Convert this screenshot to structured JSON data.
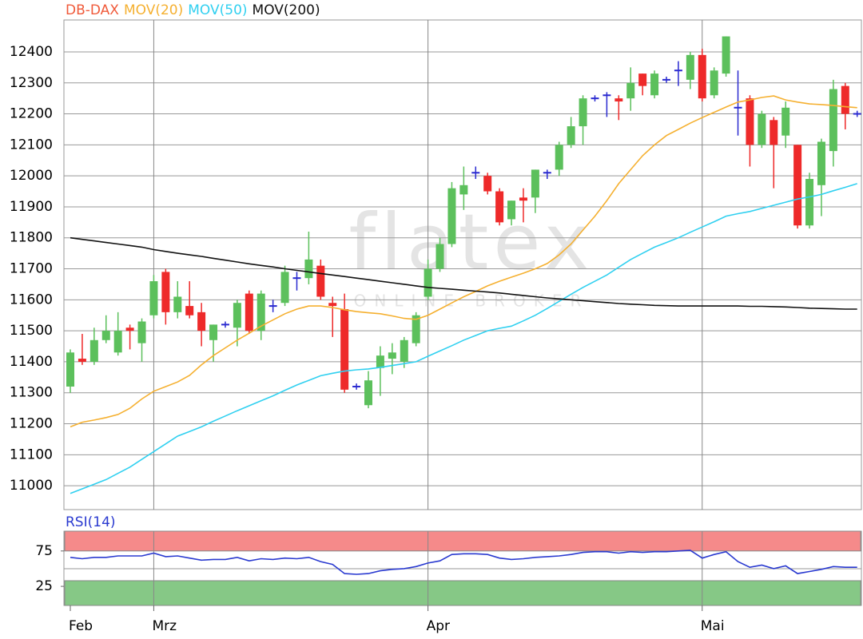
{
  "chart_data": [
    {
      "type": "candlestick",
      "watermark": "flatex",
      "watermark_sub": "ONLINE BROKER",
      "categories": [
        "Feb",
        null,
        null,
        null,
        null,
        null,
        null,
        "Mrz",
        null,
        null,
        null,
        null,
        null,
        null,
        null,
        null,
        null,
        null,
        null,
        null,
        null,
        null,
        null,
        null,
        null,
        null,
        null,
        null,
        null,
        null,
        "Apr",
        null,
        null,
        null,
        null,
        null,
        null,
        null,
        null,
        null,
        null,
        null,
        null,
        null,
        null,
        null,
        null,
        null,
        null,
        null,
        null,
        null,
        null,
        "Mai",
        null,
        null,
        null,
        null,
        null,
        null,
        null,
        null,
        null,
        null,
        null,
        null,
        null
      ],
      "ylim": [
        10923,
        12503
      ],
      "yticks": [
        11000,
        11100,
        11200,
        11300,
        11400,
        11500,
        11600,
        11700,
        11800,
        11900,
        12000,
        12100,
        12200,
        12300,
        12400
      ],
      "grid": true,
      "series": [
        {
          "name": "DB-DAX",
          "type": "candlestick",
          "color": "#f05a3a",
          "up_color": "#5cc05c",
          "down_color": "#ee2a2a",
          "flat_color": "#2a2ad0",
          "open": [
            11320,
            11410,
            11400,
            11470,
            11430,
            11510,
            11460,
            11550,
            11690,
            11560,
            11580,
            11560,
            11470,
            11520,
            11510,
            11620,
            11500,
            11580,
            11590,
            11670,
            11670,
            11710,
            11590,
            11570,
            11320,
            11260,
            11380,
            11410,
            11400,
            11460,
            11610,
            11700,
            11780,
            11940,
            12010,
            12000,
            11950,
            11860,
            11930,
            11930,
            12010,
            12020,
            12100,
            12160,
            12250,
            12260,
            12250,
            12250,
            12330,
            12260,
            12310,
            12340,
            12310,
            12390,
            12260,
            12330,
            12220,
            12250,
            12100,
            12180,
            12130,
            12100,
            11840,
            11970,
            12080,
            12290,
            12200
          ],
          "high": [
            11440,
            11490,
            11510,
            11550,
            11560,
            11520,
            11540,
            11680,
            11700,
            11660,
            11660,
            11590,
            11520,
            11530,
            11600,
            11630,
            11630,
            11600,
            11710,
            11690,
            11820,
            11730,
            11610,
            11620,
            11330,
            11370,
            11450,
            11460,
            11480,
            11560,
            11730,
            11800,
            11980,
            12030,
            12030,
            12010,
            11960,
            11920,
            11960,
            12020,
            12020,
            12110,
            12190,
            12260,
            12260,
            12270,
            12260,
            12350,
            12330,
            12340,
            12320,
            12370,
            12400,
            12410,
            12350,
            12450,
            12340,
            12260,
            12210,
            12190,
            12240,
            12100,
            12010,
            12120,
            12310,
            12300,
            12210
          ],
          "low": [
            11300,
            11390,
            11390,
            11460,
            11420,
            11440,
            11400,
            11540,
            11520,
            11540,
            11540,
            11450,
            11400,
            11510,
            11450,
            11490,
            11470,
            11560,
            11580,
            11630,
            11650,
            11600,
            11480,
            11300,
            11310,
            11250,
            11290,
            11360,
            11380,
            11450,
            11600,
            11690,
            11770,
            11890,
            11990,
            11940,
            11840,
            11840,
            11850,
            11880,
            11990,
            12000,
            12090,
            12100,
            12240,
            12190,
            12180,
            12210,
            12260,
            12250,
            12300,
            12290,
            12280,
            12240,
            12250,
            12320,
            12130,
            12030,
            12090,
            11960,
            12090,
            11830,
            11830,
            11870,
            12030,
            12150,
            12190
          ],
          "close": [
            11430,
            11400,
            11470,
            11500,
            11500,
            11500,
            11530,
            11660,
            11560,
            11610,
            11550,
            11500,
            11520,
            11520,
            11590,
            11500,
            11620,
            11580,
            11690,
            11670,
            11730,
            11610,
            11580,
            11310,
            11320,
            11340,
            11420,
            11430,
            11470,
            11550,
            11700,
            11780,
            11960,
            11970,
            12010,
            11950,
            11850,
            11920,
            11920,
            12020,
            12010,
            12100,
            12160,
            12250,
            12250,
            12260,
            12240,
            12300,
            12290,
            12330,
            12310,
            12340,
            12390,
            12250,
            12340,
            12450,
            12220,
            12100,
            12200,
            12100,
            12220,
            11840,
            11990,
            12110,
            12280,
            12200,
            12200
          ]
        },
        {
          "name": "MOV(20)",
          "color": "#f5b030",
          "values": [
            11190,
            11205,
            11212,
            11220,
            11230,
            11250,
            11280,
            11305,
            11320,
            11335,
            11356,
            11390,
            11420,
            11445,
            11470,
            11492,
            11515,
            11535,
            11555,
            11570,
            11580,
            11580,
            11575,
            11568,
            11562,
            11558,
            11555,
            11548,
            11540,
            11537,
            11550,
            11570,
            11590,
            11610,
            11627,
            11645,
            11660,
            11673,
            11686,
            11700,
            11717,
            11745,
            11780,
            11825,
            11870,
            11920,
            11975,
            12020,
            12065,
            12100,
            12130,
            12150,
            12170,
            12188,
            12205,
            12222,
            12238,
            12245,
            12253,
            12258,
            12245,
            12238,
            12232,
            12230,
            12227,
            12223,
            12220
          ]
        },
        {
          "name": "MOV(50)",
          "color": "#30d0f0",
          "values": [
            10975,
            10990,
            11005,
            11020,
            11040,
            11060,
            11085,
            11110,
            11135,
            11160,
            11175,
            11190,
            11208,
            11225,
            11242,
            11258,
            11274,
            11290,
            11308,
            11325,
            11340,
            11355,
            11363,
            11370,
            11374,
            11377,
            11382,
            11388,
            11394,
            11400,
            11418,
            11435,
            11452,
            11470,
            11485,
            11500,
            11508,
            11515,
            11532,
            11550,
            11572,
            11595,
            11618,
            11640,
            11660,
            11680,
            11705,
            11730,
            11750,
            11770,
            11785,
            11800,
            11818,
            11835,
            11852,
            11870,
            11878,
            11885,
            11895,
            11905,
            11915,
            11925,
            11932,
            11940,
            11952,
            11963,
            11975
          ]
        },
        {
          "name": "MOV(200)",
          "color": "#111111",
          "values": [
            11800,
            11795,
            11790,
            11785,
            11780,
            11775,
            11770,
            11762,
            11756,
            11750,
            11745,
            11740,
            11734,
            11728,
            11722,
            11716,
            11711,
            11706,
            11700,
            11695,
            11690,
            11685,
            11680,
            11675,
            11670,
            11665,
            11660,
            11655,
            11650,
            11645,
            11640,
            11637,
            11634,
            11631,
            11628,
            11625,
            11622,
            11618,
            11614,
            11610,
            11606,
            11603,
            11600,
            11597,
            11594,
            11591,
            11588,
            11586,
            11584,
            11582,
            11581,
            11580,
            11580,
            11580,
            11580,
            11580,
            11580,
            11579,
            11579,
            11578,
            11577,
            11575,
            11573,
            11572,
            11571,
            11570,
            11570
          ]
        }
      ]
    },
    {
      "type": "line",
      "ylim": [
        -2,
        103
      ],
      "yticks": [
        25,
        75
      ],
      "grid_lines": [
        50
      ],
      "zones": [
        {
          "from": 75,
          "to": 103,
          "color": "#f58a8a"
        },
        {
          "from": -2,
          "to": 33,
          "color": "#86c886"
        }
      ],
      "series": [
        {
          "name": "RSI(14)",
          "color": "#2a3ad0",
          "values": [
            66,
            64,
            66,
            66,
            68,
            68,
            68,
            72,
            67,
            68,
            65,
            62,
            63,
            63,
            66,
            61,
            64,
            63,
            65,
            64,
            66,
            60,
            56,
            43,
            42,
            43,
            47,
            49,
            50,
            53,
            58,
            61,
            70,
            71,
            71,
            70,
            65,
            63,
            64,
            66,
            67,
            68,
            70,
            73,
            74,
            74,
            72,
            74,
            73,
            74,
            74,
            75,
            76,
            65,
            70,
            74,
            60,
            52,
            55,
            50,
            54,
            43,
            46,
            49,
            53,
            52,
            52
          ]
        }
      ]
    }
  ]
}
